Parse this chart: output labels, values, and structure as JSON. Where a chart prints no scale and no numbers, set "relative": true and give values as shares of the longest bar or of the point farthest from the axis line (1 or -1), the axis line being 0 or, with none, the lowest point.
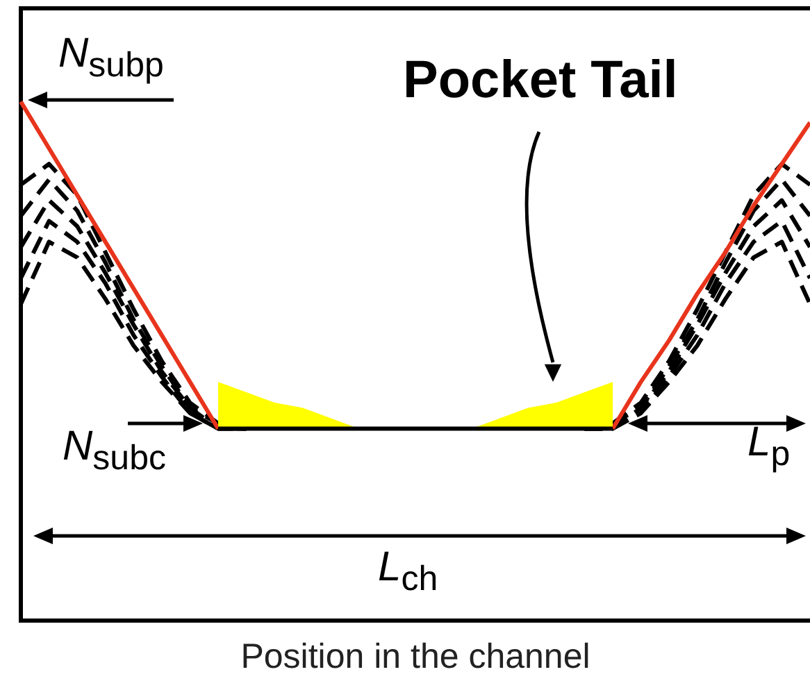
{
  "chart_data": {
    "type": "line",
    "relative": true,
    "marker": "none",
    "xlabel": "Position in the channel",
    "categories": [
      null,
      null,
      null,
      null,
      null,
      null,
      null,
      null,
      null,
      null,
      null,
      null,
      null,
      null,
      null,
      null,
      null,
      null,
      null,
      null,
      null,
      null,
      null,
      null,
      null,
      null,
      null,
      null,
      null
    ],
    "annotations": [
      "N$_{subp}$",
      "Pocket Tail",
      "N$_{subc}$",
      "L$_{p}$",
      "L$_{ch}$"
    ],
    "series": [
      {
        "color": "#000000",
        "line_style": "solid",
        "values": [
          null,
          null,
          null,
          null,
          null,
          null,
          null,
          0.37,
          0.37,
          0.37,
          0.37,
          0.37,
          0.37,
          0.37,
          0.37,
          0.37,
          0.37,
          0.37,
          0.37,
          0.37,
          0.37,
          0.37,
          null,
          null,
          null,
          null,
          null,
          null,
          null
        ]
      },
      {
        "type": "area",
        "color": "#ffff00",
        "values": [
          null,
          null,
          null,
          null,
          null,
          null,
          null,
          0.46,
          0.44,
          0.42,
          0.41,
          0.39,
          0.37,
          null,
          null,
          null,
          0.37,
          0.39,
          0.41,
          0.42,
          0.44,
          0.46,
          null,
          null,
          null,
          null,
          null,
          null,
          null
        ]
      },
      {
        "color": "#e8341c",
        "line_style": "solid",
        "values": [
          1,
          0.91,
          0.82,
          0.73,
          0.64,
          0.55,
          0.46,
          0.37,
          null,
          null,
          null,
          null,
          null,
          null,
          null,
          null,
          null,
          null,
          null,
          null,
          null,
          0.37,
          0.46,
          0.54,
          0.63,
          0.71,
          0.8,
          0.88,
          0.96
        ]
      },
      {
        "color": "#000000",
        "line_style": "dashed",
        "values": [
          0.84,
          0.88,
          0.82,
          0.71,
          0.6,
          0.5,
          0.42,
          0.38,
          0.37,
          null,
          null,
          null,
          null,
          null,
          null,
          null,
          null,
          null,
          null,
          null,
          0.37,
          0.38,
          0.42,
          0.5,
          0.6,
          0.71,
          0.82,
          0.88,
          0.84
        ]
      },
      {
        "color": "#000000",
        "line_style": "dashed",
        "values": [
          0.78,
          0.85,
          0.79,
          0.69,
          0.58,
          0.49,
          0.41,
          0.38,
          0.37,
          null,
          null,
          null,
          null,
          null,
          null,
          null,
          null,
          null,
          null,
          null,
          0.37,
          0.38,
          0.41,
          0.49,
          0.58,
          0.69,
          0.79,
          0.85,
          0.78
        ]
      },
      {
        "color": "#000000",
        "line_style": "dashed",
        "values": [
          0.72,
          0.81,
          0.76,
          0.67,
          0.57,
          0.48,
          0.41,
          0.37,
          0.37,
          null,
          null,
          null,
          null,
          null,
          null,
          null,
          null,
          null,
          null,
          null,
          0.37,
          0.37,
          0.41,
          0.48,
          0.57,
          0.67,
          0.76,
          0.81,
          0.72
        ]
      },
      {
        "color": "#000000",
        "line_style": "dashed",
        "values": [
          0.66,
          0.77,
          0.73,
          0.65,
          0.55,
          0.47,
          0.4,
          0.37,
          0.37,
          null,
          null,
          null,
          null,
          null,
          null,
          null,
          null,
          null,
          null,
          null,
          0.37,
          0.37,
          0.4,
          0.47,
          0.55,
          0.65,
          0.73,
          0.77,
          0.66
        ]
      },
      {
        "color": "#000000",
        "line_style": "dashed",
        "values": [
          0.61,
          0.73,
          0.7,
          0.62,
          0.53,
          0.46,
          0.4,
          0.37,
          0.37,
          null,
          null,
          null,
          null,
          null,
          null,
          null,
          null,
          null,
          null,
          null,
          0.37,
          0.37,
          0.4,
          0.46,
          0.53,
          0.62,
          0.7,
          0.73,
          0.61
        ]
      }
    ]
  }
}
